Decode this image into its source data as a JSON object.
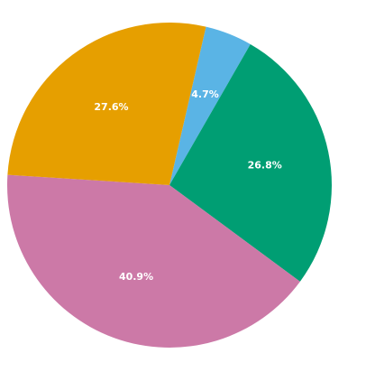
{
  "chart_data": {
    "type": "pie",
    "slices": [
      {
        "label": "4.7%",
        "value": 4.7,
        "color": "#5AB4E5"
      },
      {
        "label": "26.8%",
        "value": 26.8,
        "color": "#009E73"
      },
      {
        "label": "40.9%",
        "value": 40.9,
        "color": "#CC79A7"
      },
      {
        "label": "27.6%",
        "value": 27.6,
        "color": "#E69F00"
      }
    ],
    "start_angle_deg": 77,
    "direction": "clockwise",
    "legend": "none",
    "title": ""
  }
}
